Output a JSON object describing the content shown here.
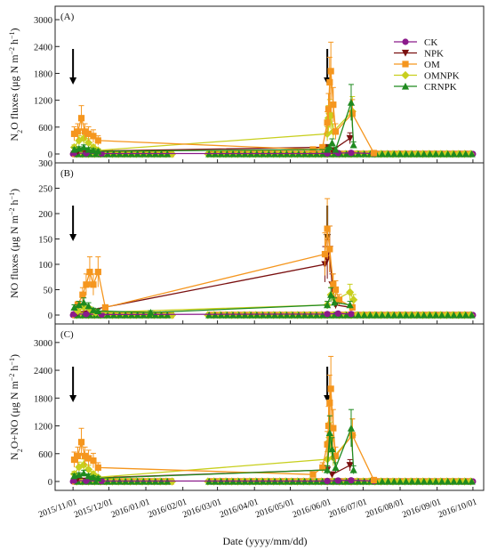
{
  "figure": {
    "xlabel": "Date (yyyy/mm/dd)",
    "x_ticks": [
      "2015/11/01",
      "2015/12/01",
      "2016/01/01",
      "2016/02/01",
      "2016/03/01",
      "2016/04/01",
      "2016/05/01",
      "2016/06/01",
      "2016/07/01",
      "2016/08/01",
      "2016/09/01",
      "2016/10/01"
    ],
    "legend": [
      {
        "name": "CK",
        "color": "#8b1a8b",
        "marker": "circle"
      },
      {
        "name": "NPK",
        "color": "#7a1010",
        "marker": "triangle-down"
      },
      {
        "name": "OM",
        "color": "#f5961e",
        "marker": "square"
      },
      {
        "name": "OMNPK",
        "color": "#c8cf1e",
        "marker": "diamond"
      },
      {
        "name": "CRNPK",
        "color": "#1f8a1f",
        "marker": "triangle-up"
      }
    ]
  },
  "chart_data": [
    {
      "type": "line",
      "panel_label": "(A)",
      "ylabel_parts": [
        "N",
        "2",
        "O fluxes (μg N m",
        "−2",
        " h",
        "−1",
        ")"
      ],
      "y_ticks": [
        0,
        600,
        1200,
        1800,
        2400,
        3000
      ],
      "ylim": [
        0,
        3300
      ],
      "fertilization_arrows": [
        "2015/11/01",
        "2016/06/01"
      ],
      "series": [
        {
          "name": "CK",
          "x": [
            "2015/11/02",
            "2015/11/12",
            "2015/11/25",
            "2016/06/01",
            "2016/06/10",
            "2016/06/21",
            "2016/07/10"
          ],
          "y": [
            20,
            15,
            10,
            10,
            20,
            25,
            10
          ]
        },
        {
          "name": "NPK",
          "x": [
            "2015/11/05",
            "2016/06/01",
            "2016/06/05",
            "2016/06/20"
          ],
          "y": [
            60,
            150,
            80,
            350
          ]
        },
        {
          "name": "OM",
          "x": [
            "2015/11/02",
            "2015/11/05",
            "2015/11/08",
            "2015/11/11",
            "2015/11/14",
            "2015/11/18",
            "2015/11/22",
            "2016/05/20",
            "2016/05/28",
            "2016/06/01",
            "2016/06/02",
            "2016/06/03",
            "2016/06/04",
            "2016/06/06",
            "2016/06/08",
            "2016/06/22",
            "2016/07/10"
          ],
          "y": [
            450,
            500,
            800,
            500,
            450,
            400,
            300,
            100,
            150,
            700,
            1000,
            1600,
            1850,
            1100,
            500,
            900,
            20
          ]
        },
        {
          "name": "OMNPK",
          "x": [
            "2015/11/02",
            "2015/11/06",
            "2015/11/10",
            "2015/11/14",
            "2015/11/18",
            "2015/11/22",
            "2016/06/01",
            "2016/06/02",
            "2016/06/03",
            "2016/06/04",
            "2016/06/06",
            "2016/06/22"
          ],
          "y": [
            150,
            300,
            350,
            250,
            150,
            80,
            450,
            800,
            900,
            850,
            500,
            950
          ]
        },
        {
          "name": "CRNPK",
          "x": [
            "2015/11/02",
            "2015/11/06",
            "2015/11/10",
            "2015/11/14",
            "2015/11/18",
            "2015/11/22",
            "2016/06/01",
            "2016/06/03",
            "2016/06/05",
            "2016/06/08",
            "2016/06/21",
            "2016/06/23"
          ],
          "y": [
            100,
            120,
            150,
            100,
            80,
            60,
            100,
            150,
            250,
            100,
            1150,
            200
          ]
        }
      ]
    },
    {
      "type": "line",
      "panel_label": "(B)",
      "ylabel_parts": [
        "NO fluxes (μg N m",
        "−2",
        " h",
        "−1",
        ")"
      ],
      "y_ticks": [
        0,
        50,
        100,
        150,
        200,
        250,
        300
      ],
      "ylim": [
        0,
        300
      ],
      "fertilization_arrows": [
        "2015/11/01",
        "2016/06/01"
      ],
      "series": [
        {
          "name": "CK",
          "x": [
            "2015/11/02",
            "2015/11/12",
            "2015/11/25",
            "2016/06/01",
            "2016/06/10",
            "2016/06/21"
          ],
          "y": [
            2,
            2,
            1,
            2,
            3,
            2
          ]
        },
        {
          "name": "NPK",
          "x": [
            "2015/11/05",
            "2016/05/30",
            "2016/06/01",
            "2016/06/03",
            "2016/06/05",
            "2016/06/08",
            "2016/06/21"
          ],
          "y": [
            5,
            100,
            110,
            130,
            60,
            20,
            15
          ]
        },
        {
          "name": "OM",
          "x": [
            "2015/11/05",
            "2015/11/09",
            "2015/11/12",
            "2015/11/15",
            "2015/11/18",
            "2015/11/22",
            "2015/11/28",
            "2016/05/30",
            "2016/06/01",
            "2016/06/03",
            "2016/06/06",
            "2016/06/08",
            "2016/06/11",
            "2016/06/22"
          ],
          "y": [
            20,
            40,
            60,
            85,
            60,
            85,
            15,
            120,
            170,
            130,
            60,
            50,
            30,
            15
          ]
        },
        {
          "name": "OMNPK",
          "x": [
            "2015/11/05",
            "2015/11/10",
            "2015/11/15",
            "2015/11/20",
            "2016/06/01",
            "2016/06/04",
            "2016/06/08",
            "2016/06/20",
            "2016/06/23"
          ],
          "y": [
            8,
            15,
            12,
            5,
            20,
            40,
            30,
            45,
            30
          ]
        },
        {
          "name": "CRNPK",
          "x": [
            "2015/11/02",
            "2015/11/06",
            "2015/11/10",
            "2015/11/14",
            "2015/11/18",
            "2015/11/22",
            "2016/01/05",
            "2016/06/01",
            "2016/06/04",
            "2016/06/07",
            "2016/06/20"
          ],
          "y": [
            15,
            20,
            25,
            18,
            10,
            8,
            5,
            20,
            40,
            25,
            20
          ]
        }
      ]
    },
    {
      "type": "line",
      "panel_label": "(C)",
      "ylabel_parts": [
        "N",
        "2",
        "O+NO  (μg N m",
        "−2",
        " h",
        "−1",
        ")"
      ],
      "y_ticks": [
        0,
        600,
        1200,
        1800,
        2400,
        3000
      ],
      "ylim": [
        0,
        3400
      ],
      "fertilization_arrows": [
        "2015/11/01",
        "2016/06/01"
      ],
      "series": [
        {
          "name": "CK",
          "x": [
            "2015/11/02",
            "2015/11/12",
            "2015/11/25",
            "2016/06/01",
            "2016/06/10",
            "2016/06/21",
            "2016/07/10"
          ],
          "y": [
            20,
            15,
            10,
            10,
            20,
            25,
            10
          ]
        },
        {
          "name": "NPK",
          "x": [
            "2015/11/05",
            "2016/06/01",
            "2016/06/05",
            "2016/06/20"
          ],
          "y": [
            65,
            250,
            150,
            350
          ]
        },
        {
          "name": "OM",
          "x": [
            "2015/11/02",
            "2015/11/05",
            "2015/11/08",
            "2015/11/11",
            "2015/11/14",
            "2015/11/18",
            "2015/11/22",
            "2016/05/20",
            "2016/05/28",
            "2016/06/01",
            "2016/06/02",
            "2016/06/03",
            "2016/06/04",
            "2016/06/06",
            "2016/06/08",
            "2016/06/22",
            "2016/07/10"
          ],
          "y": [
            470,
            550,
            850,
            550,
            500,
            450,
            300,
            150,
            300,
            800,
            1200,
            1700,
            2000,
            1150,
            550,
            1000,
            30
          ]
        },
        {
          "name": "OMNPK",
          "x": [
            "2015/11/02",
            "2015/11/06",
            "2015/11/10",
            "2015/11/14",
            "2015/11/18",
            "2015/11/22",
            "2016/06/01",
            "2016/06/02",
            "2016/06/03",
            "2016/06/04",
            "2016/06/06",
            "2016/06/22"
          ],
          "y": [
            160,
            310,
            360,
            260,
            160,
            90,
            480,
            850,
            950,
            900,
            520,
            1000
          ]
        },
        {
          "name": "CRNPK",
          "x": [
            "2015/11/02",
            "2015/11/06",
            "2015/11/10",
            "2015/11/14",
            "2015/11/18",
            "2015/11/22",
            "2016/06/01",
            "2016/06/03",
            "2016/06/05",
            "2016/06/08",
            "2016/06/21",
            "2016/06/23"
          ],
          "y": [
            120,
            140,
            180,
            120,
            90,
            70,
            250,
            1050,
            700,
            300,
            1150,
            250
          ]
        }
      ]
    }
  ]
}
